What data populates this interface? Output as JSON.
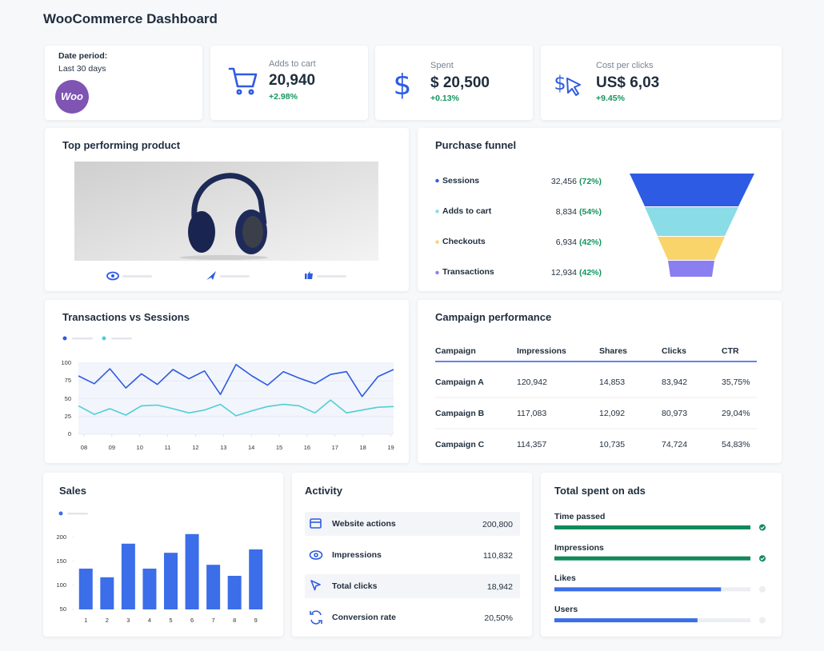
{
  "header": {
    "title": "WooCommerce Dashboard"
  },
  "date_card": {
    "label": "Date period:",
    "value": "Last 30 days",
    "logo": "Woo"
  },
  "kpis": [
    {
      "label": "Adds to cart",
      "value": "20,940",
      "change": "+2.98%"
    },
    {
      "label": "Spent",
      "value": "$ 20,500",
      "change": "+0.13%"
    },
    {
      "label": "Cost per clicks",
      "value": "US$ 6,03",
      "change": "+9.45%"
    }
  ],
  "top_product": {
    "title": "Top performing product"
  },
  "funnel": {
    "title": "Purchase funnel",
    "rows": [
      {
        "name": "Sessions",
        "value": "32,456",
        "share": "(72%)",
        "color": "#2d5be3"
      },
      {
        "name": "Adds to cart",
        "value": "8,834",
        "share": "(54%)",
        "color": "#8adce6"
      },
      {
        "name": "Checkouts",
        "value": "6,934",
        "share": "(42%)",
        "color": "#f8d46b"
      },
      {
        "name": "Transactions",
        "value": "12,934",
        "share": "(42%)",
        "color": "#8a7ef0"
      }
    ]
  },
  "chart_data": [
    {
      "type": "line",
      "title": "Transactions vs Sessions",
      "x": [
        7.8,
        8.37,
        8.93,
        9.5,
        10.06,
        10.63,
        11.19,
        11.76,
        12.32,
        12.89,
        13.45,
        14.02,
        14.58,
        15.15,
        15.71,
        16.28,
        16.84,
        17.41,
        17.97,
        18.54,
        19.1
      ],
      "xlim": [
        7.8,
        19.1
      ],
      "xticks": [
        {
          "value": 8,
          "label": "08"
        },
        {
          "value": 9,
          "label": "09"
        },
        10,
        11,
        12,
        13,
        14,
        15,
        16,
        17,
        18,
        19
      ],
      "ylim": [
        0,
        100
      ],
      "yticks": [
        0,
        25,
        50,
        75,
        100
      ],
      "grid": true,
      "series": [
        {
          "color": "#2d5be3",
          "values": [
            82,
            71,
            92,
            65,
            85,
            70,
            91,
            78,
            89,
            56,
            98,
            82,
            69,
            88,
            79,
            71,
            84,
            88,
            53,
            81,
            91
          ]
        },
        {
          "color": "#4fcfd6",
          "values": [
            40,
            28,
            36,
            27,
            40,
            41,
            36,
            30,
            34,
            42,
            26,
            33,
            39,
            42,
            40,
            30,
            48,
            30,
            34,
            38,
            39
          ]
        }
      ]
    },
    {
      "type": "bar",
      "title": "Sales",
      "categories": [
        "1",
        "2",
        "3",
        "4",
        "5",
        "6",
        "7",
        "8",
        "9"
      ],
      "values": [
        135,
        117,
        187,
        135,
        168,
        207,
        143,
        120,
        175
      ],
      "color": "#3b6ee8",
      "ylim": [
        50,
        220
      ],
      "yticks": [
        50,
        100,
        150,
        200
      ]
    }
  ],
  "campaigns": {
    "title": "Campaign performance",
    "columns": [
      "Campaign",
      "Impressions",
      "Shares",
      "Clicks",
      "CTR"
    ],
    "rows": [
      [
        "Campaign A",
        "120,942",
        "14,853",
        "83,942",
        "35,75%"
      ],
      [
        "Campaign B",
        "117,083",
        "12,092",
        "80,973",
        "29,04%"
      ],
      [
        "Campaign C",
        "114,357",
        "10,735",
        "74,724",
        "54,83%"
      ]
    ]
  },
  "activity": {
    "title": "Activity",
    "rows": [
      {
        "name": "Website actions",
        "value": "200,800"
      },
      {
        "name": "Impressions",
        "value": "110,832"
      },
      {
        "name": "Total clicks",
        "value": "18,942"
      },
      {
        "name": "Conversion rate",
        "value": "20,50%"
      }
    ]
  },
  "ads_spent": {
    "title": "Total spent on ads",
    "scale": [
      0,
      100
    ],
    "rows": [
      {
        "name": "Time passed",
        "value": 100,
        "color": "#108a5b"
      },
      {
        "name": "Impressions",
        "value": 100,
        "color": "#108a5b"
      },
      {
        "name": "Likes",
        "value": 85,
        "color": "#3b6ee8"
      },
      {
        "name": "Users",
        "value": 73,
        "color": "#3b6ee8"
      }
    ]
  }
}
